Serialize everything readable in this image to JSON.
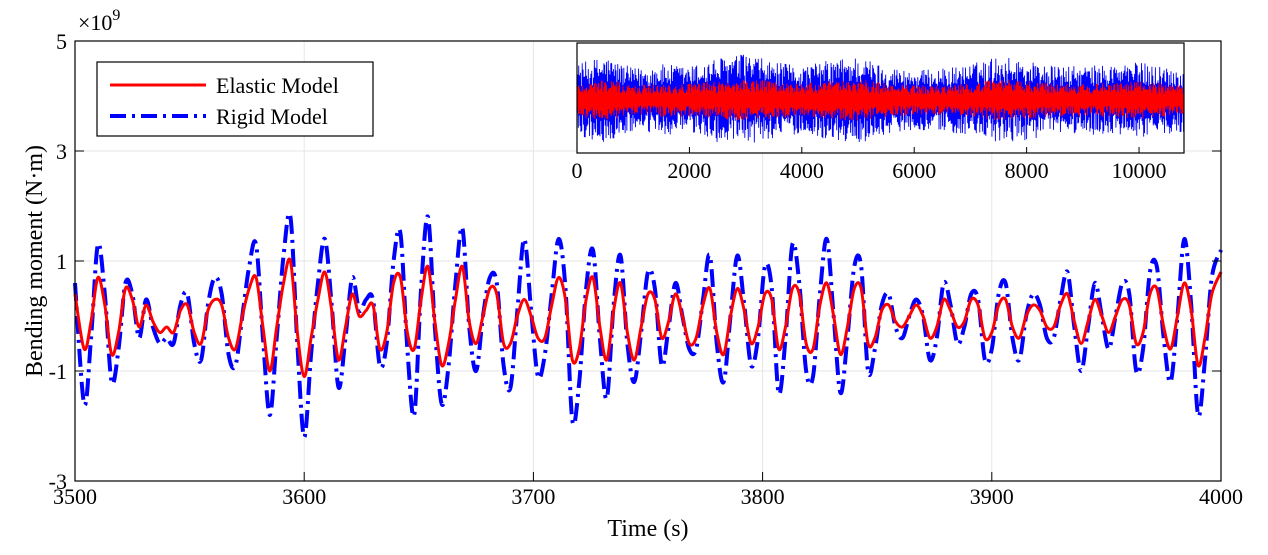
{
  "chart_data": [
    {
      "type": "line",
      "xlabel": "Time (s)",
      "ylabel": "Bending moment (N·m)",
      "exponent_label": "×10",
      "exponent_power": "9",
      "xlim": [
        3500,
        4000
      ],
      "ylim": [
        -3,
        5
      ],
      "xticks": [
        3500,
        3600,
        3700,
        3800,
        3900,
        4000
      ],
      "yticks": [
        -3,
        -1,
        1,
        3,
        5
      ],
      "grid": true,
      "legend_position": "top-left",
      "series": [
        {
          "name": "Elastic Model",
          "color": "#ff0000",
          "style": "solid",
          "x": [
            3500,
            3504,
            3507,
            3510,
            3513,
            3516,
            3519,
            3522,
            3525,
            3528,
            3531,
            3534,
            3537,
            3540,
            3543,
            3546,
            3549,
            3552,
            3555,
            3558,
            3561,
            3564,
            3567,
            3570,
            3573,
            3576,
            3579,
            3582,
            3585,
            3588,
            3591,
            3594,
            3597,
            3600,
            3603,
            3606,
            3609,
            3612,
            3615,
            3618,
            3621,
            3624,
            3627,
            3630,
            3633,
            3636,
            3639,
            3642,
            3645,
            3648,
            3651,
            3654,
            3657,
            3660,
            3663,
            3666,
            3669,
            3672,
            3675,
            3678,
            3681,
            3684,
            3687,
            3690,
            3693,
            3696,
            3699,
            3702,
            3705,
            3708,
            3711,
            3714,
            3717,
            3720,
            3723,
            3726,
            3729,
            3732,
            3735,
            3738,
            3741,
            3744,
            3747,
            3750,
            3753,
            3756,
            3759,
            3762,
            3765,
            3768,
            3771,
            3774,
            3777,
            3780,
            3783,
            3786,
            3789,
            3792,
            3795,
            3798,
            3801,
            3804,
            3807,
            3810,
            3813,
            3816,
            3819,
            3822,
            3825,
            3828,
            3831,
            3834,
            3837,
            3840,
            3843,
            3846,
            3849,
            3852,
            3855,
            3858,
            3861,
            3864,
            3867,
            3870,
            3873,
            3876,
            3879,
            3882,
            3885,
            3888,
            3891,
            3894,
            3897,
            3900,
            3903,
            3906,
            3909,
            3912,
            3915,
            3918,
            3921,
            3924,
            3927,
            3930,
            3933,
            3936,
            3939,
            3942,
            3945,
            3948,
            3951,
            3954,
            3957,
            3960,
            3963,
            3966,
            3969,
            3972,
            3975,
            3978,
            3981,
            3984,
            3987,
            3990,
            3993,
            3996,
            4000
          ],
          "y": [
            0.4,
            -0.6,
            -0.1,
            0.7,
            0.2,
            -0.7,
            -0.3,
            0.5,
            0.3,
            -0.2,
            0.2,
            -0.1,
            -0.3,
            -0.2,
            -0.3,
            0.1,
            0.2,
            -0.3,
            -0.5,
            0.1,
            0.3,
            0.2,
            -0.4,
            -0.6,
            0.0,
            0.5,
            0.7,
            -0.2,
            -1.0,
            -0.2,
            0.6,
            1.0,
            -0.3,
            -1.1,
            -0.4,
            0.3,
            0.8,
            0.1,
            -0.8,
            -0.2,
            0.4,
            0.0,
            0.1,
            0.2,
            -0.6,
            -0.3,
            0.6,
            0.7,
            -0.3,
            -0.6,
            0.3,
            0.9,
            -0.1,
            -0.9,
            -0.5,
            0.3,
            0.9,
            -0.1,
            -0.5,
            0.0,
            0.5,
            0.4,
            -0.5,
            -0.5,
            0.0,
            0.3,
            0.0,
            -0.4,
            -0.4,
            0.2,
            0.7,
            0.3,
            -0.8,
            -0.6,
            0.3,
            0.7,
            -0.2,
            -0.8,
            0.1,
            0.6,
            -0.3,
            -0.8,
            -0.2,
            0.4,
            0.3,
            -0.4,
            -0.1,
            0.4,
            0.0,
            -0.5,
            -0.4,
            0.2,
            0.5,
            -0.3,
            -0.7,
            0.0,
            0.5,
            0.1,
            -0.5,
            -0.2,
            0.4,
            0.3,
            -0.6,
            -0.2,
            0.5,
            0.4,
            -0.5,
            -0.6,
            0.2,
            0.6,
            0.0,
            -0.7,
            -0.2,
            0.5,
            0.5,
            -0.5,
            -0.4,
            0.1,
            0.2,
            -0.1,
            -0.2,
            0.0,
            0.2,
            0.0,
            -0.4,
            -0.2,
            0.3,
            0.1,
            -0.2,
            -0.1,
            0.3,
            0.2,
            -0.4,
            -0.3,
            0.2,
            0.3,
            -0.2,
            -0.4,
            0.0,
            0.2,
            0.1,
            -0.2,
            -0.2,
            0.2,
            0.4,
            -0.1,
            -0.5,
            -0.1,
            0.3,
            0.0,
            -0.3,
            0.0,
            0.3,
            0.2,
            -0.5,
            -0.3,
            0.4,
            0.5,
            -0.2,
            -0.6,
            0.0,
            0.6,
            0.1,
            -0.9,
            -0.4,
            0.4,
            0.8
          ]
        },
        {
          "name": "Rigid Model",
          "color": "#0000ff",
          "style": "dash-dot",
          "x": [
            3500,
            3504,
            3507,
            3510,
            3513,
            3516,
            3519,
            3522,
            3525,
            3528,
            3531,
            3534,
            3537,
            3540,
            3543,
            3546,
            3549,
            3552,
            3555,
            3558,
            3561,
            3564,
            3567,
            3570,
            3573,
            3576,
            3579,
            3582,
            3585,
            3588,
            3591,
            3594,
            3597,
            3600,
            3603,
            3606,
            3609,
            3612,
            3615,
            3618,
            3621,
            3624,
            3627,
            3630,
            3633,
            3636,
            3639,
            3642,
            3645,
            3648,
            3651,
            3654,
            3657,
            3660,
            3663,
            3666,
            3669,
            3672,
            3675,
            3678,
            3681,
            3684,
            3687,
            3690,
            3693,
            3696,
            3699,
            3702,
            3705,
            3708,
            3711,
            3714,
            3717,
            3720,
            3723,
            3726,
            3729,
            3732,
            3735,
            3738,
            3741,
            3744,
            3747,
            3750,
            3753,
            3756,
            3759,
            3762,
            3765,
            3768,
            3771,
            3774,
            3777,
            3780,
            3783,
            3786,
            3789,
            3792,
            3795,
            3798,
            3801,
            3804,
            3807,
            3810,
            3813,
            3816,
            3819,
            3822,
            3825,
            3828,
            3831,
            3834,
            3837,
            3840,
            3843,
            3846,
            3849,
            3852,
            3855,
            3858,
            3861,
            3864,
            3867,
            3870,
            3873,
            3876,
            3879,
            3882,
            3885,
            3888,
            3891,
            3894,
            3897,
            3900,
            3903,
            3906,
            3909,
            3912,
            3915,
            3918,
            3921,
            3924,
            3927,
            3930,
            3933,
            3936,
            3939,
            3942,
            3945,
            3948,
            3951,
            3954,
            3957,
            3960,
            3963,
            3966,
            3969,
            3972,
            3975,
            3978,
            3981,
            3984,
            3987,
            3990,
            3993,
            3996,
            4000
          ],
          "y": [
            0.6,
            -1.6,
            -0.4,
            1.3,
            0.4,
            -1.2,
            -0.6,
            0.6,
            0.4,
            -0.4,
            0.3,
            -0.2,
            -0.5,
            -0.4,
            -0.5,
            0.2,
            0.4,
            -0.5,
            -0.8,
            0.2,
            0.7,
            0.4,
            -0.7,
            -0.9,
            0.0,
            0.9,
            1.3,
            -0.4,
            -1.8,
            -0.4,
            1.1,
            1.8,
            -0.5,
            -2.2,
            -0.7,
            0.6,
            1.4,
            0.2,
            -1.3,
            -0.4,
            0.7,
            0.1,
            0.3,
            0.3,
            -0.9,
            -0.5,
            1.0,
            1.5,
            -0.6,
            -1.8,
            0.5,
            1.8,
            -0.2,
            -1.6,
            -0.9,
            0.6,
            1.6,
            -0.2,
            -1.0,
            0.0,
            0.7,
            0.6,
            -0.9,
            -1.3,
            0.1,
            1.4,
            0.1,
            -1.1,
            -0.7,
            0.4,
            1.4,
            0.5,
            -1.9,
            -1.2,
            0.5,
            1.2,
            -0.4,
            -1.5,
            0.2,
            1.1,
            -0.5,
            -1.2,
            -0.3,
            0.8,
            0.5,
            -0.9,
            -0.2,
            0.6,
            0.0,
            -0.6,
            -0.6,
            0.3,
            1.1,
            -0.5,
            -1.2,
            0.0,
            1.1,
            0.2,
            -0.9,
            -0.4,
            0.9,
            0.5,
            -1.4,
            -0.4,
            1.3,
            0.6,
            -1.0,
            -1.1,
            0.4,
            1.4,
            0.0,
            -1.4,
            -0.4,
            0.9,
            0.9,
            -1.0,
            -0.6,
            0.2,
            0.4,
            -0.2,
            -0.4,
            0.0,
            0.3,
            0.0,
            -0.8,
            -0.4,
            0.6,
            0.2,
            -0.5,
            -0.2,
            0.4,
            0.3,
            -0.8,
            -0.6,
            0.4,
            0.6,
            -0.4,
            -0.8,
            0.0,
            0.4,
            0.2,
            -0.4,
            -0.4,
            0.3,
            0.8,
            -0.2,
            -1.0,
            -0.2,
            0.6,
            0.0,
            -0.6,
            0.0,
            0.6,
            0.4,
            -1.0,
            -0.6,
            0.8,
            0.9,
            -0.4,
            -1.2,
            0.0,
            1.4,
            0.2,
            -1.8,
            -0.8,
            0.7,
            1.2
          ]
        }
      ]
    },
    {
      "type": "line",
      "xlim": [
        0,
        10800
      ],
      "ylim": [
        -3,
        5
      ],
      "xticks": [
        0,
        2000,
        4000,
        6000,
        8000,
        10000
      ],
      "grid": false,
      "series": [
        {
          "name": "Rigid Model",
          "color": "#0000ff",
          "amplitude_envelope": {
            "x": [
              0,
              500,
              1000,
              1500,
              2000,
              2500,
              3000,
              3500,
              4000,
              4500,
              5000,
              5500,
              6000,
              6500,
              7000,
              7500,
              8000,
              8500,
              9000,
              9500,
              10000,
              10500,
              10800
            ],
            "amplitude": [
              1.7,
              2.1,
              1.5,
              1.7,
              1.6,
              2.0,
              2.2,
              1.8,
              1.6,
              1.9,
              2.1,
              1.6,
              1.4,
              1.5,
              1.7,
              2.1,
              1.9,
              1.6,
              1.6,
              1.7,
              1.8,
              1.6,
              1.5
            ]
          }
        },
        {
          "name": "Elastic Model",
          "color": "#ff0000",
          "amplitude_envelope": {
            "x": [
              0,
              500,
              1000,
              1500,
              2000,
              2500,
              3000,
              3500,
              4000,
              4500,
              5000,
              5500,
              6000,
              6500,
              7000,
              7500,
              8000,
              8500,
              9000,
              9500,
              10000,
              10500,
              10800
            ],
            "amplitude": [
              0.8,
              1.0,
              0.7,
              0.8,
              0.8,
              0.9,
              1.0,
              0.9,
              0.8,
              0.9,
              1.0,
              0.8,
              0.7,
              0.7,
              0.8,
              1.0,
              0.9,
              0.8,
              0.8,
              0.8,
              0.9,
              0.8,
              0.7
            ]
          }
        }
      ]
    }
  ]
}
